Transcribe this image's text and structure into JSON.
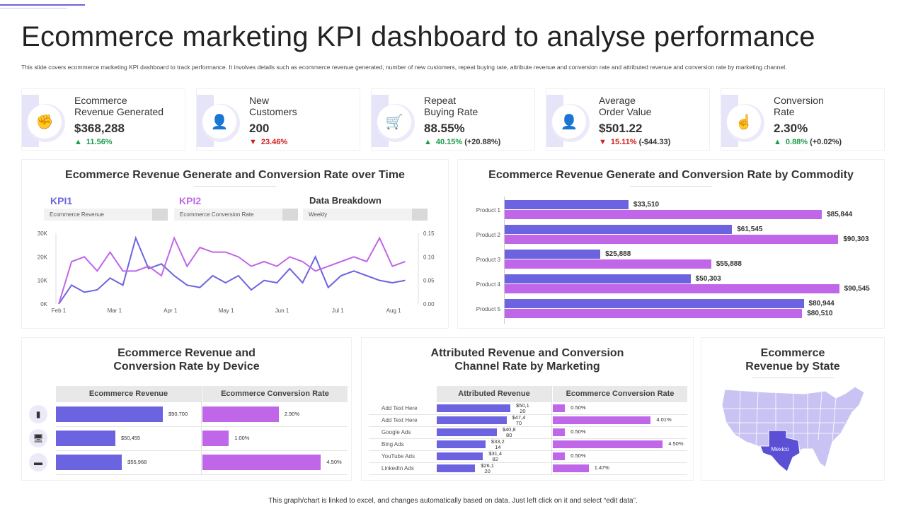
{
  "title": "Ecommerce marketing KPI dashboard to analyse performance",
  "subtitle": "This slide covers ecommerce marketing KPI dashboard to track performance. It involves details such as ecommerce revenue generated, number of new customers, repeat buying rate, attribute revenue and conversion rate and attributed revenue and conversion rate by marketing channel.",
  "colors": {
    "accent": "#6c63e0",
    "secondary": "#c066e8",
    "up": "#1a9c4a",
    "down": "#d41a1a",
    "band": "#e6e4f8"
  },
  "kpis": [
    {
      "title": "Ecommerce\nRevenue  Generated",
      "value": "$368,288",
      "direction": "up",
      "change": "11.56%",
      "extra": "",
      "icon": "hand-raised-arrows-icon"
    },
    {
      "title": "New\nCustomers",
      "value": "200",
      "direction": "down",
      "change": "23.46%",
      "extra": "",
      "icon": "hand-holding-user-icon"
    },
    {
      "title": "Repeat\nBuying Rate",
      "value": "88.55%",
      "direction": "up",
      "change": "40.15%",
      "extra": "(+20.88%)",
      "icon": "shopping-cart-person-icon"
    },
    {
      "title": "Average\nOrder Value",
      "value": "$501.22",
      "direction": "down",
      "change": "15.11%",
      "extra": "(-$44.33)",
      "icon": "hand-holding-user-icon"
    },
    {
      "title": "Conversion\nRate",
      "value": "2.30%",
      "direction": "up",
      "change": "0.88%",
      "extra": "(+0.02%)",
      "icon": "touch-screen-icon"
    }
  ],
  "time_panel": {
    "title": "Ecommerce Revenue Generate and Conversion Rate over Time",
    "kpi1_label": "KPI1",
    "kpi1_value": "Ecommerce Revenue",
    "kpi2_label": "KPI2",
    "kpi2_value": "Ecommerce Conversion Rate",
    "breakdown_label": "Data Breakdown",
    "breakdown_value": "Weekly"
  },
  "commodity_panel": {
    "title": "Ecommerce Revenue Generate and Conversion Rate by Commodity"
  },
  "device_panel": {
    "title_line1": "Ecommerce Revenue and",
    "title_line2": "Conversion Rate by Device",
    "col1": "Ecommerce Revenue",
    "col2": "Ecommerce Conversion Rate"
  },
  "marketing_panel": {
    "title_line1": "Attributed Revenue and Conversion",
    "title_line2": "Channel Rate by Marketing",
    "col1": "Attributed Revenue",
    "col2": "Ecommerce Conversion Rate"
  },
  "state_panel": {
    "title_line1": "Ecommerce",
    "title_line2": "Revenue by State",
    "highlight": "Mexico"
  },
  "footer": "This graph/chart is linked to excel, and changes automatically based on data. Just left click on it and select “edit data”.",
  "chart_data": [
    {
      "type": "line",
      "x_ticks": [
        "Feb 1",
        "Mar 1",
        "Apr 1",
        "May 1",
        "Jun 1",
        "Jul 1",
        "Aug 1"
      ],
      "y_left_ticks": [
        "0K",
        "10K",
        "20K",
        "30K"
      ],
      "y_left_lim": [
        0,
        30000
      ],
      "y_right_ticks": [
        "0.00",
        "0.05",
        "0.10",
        "0.15"
      ],
      "y_right_lim": [
        0,
        0.15
      ],
      "series": [
        {
          "name": "KPI1",
          "axis": "left",
          "color": "#6c63e0",
          "values": [
            0,
            8000,
            5000,
            6000,
            11000,
            8000,
            28000,
            15000,
            17000,
            12000,
            8000,
            7000,
            12000,
            9000,
            12000,
            6000,
            10000,
            9000,
            15000,
            9000,
            20000,
            7000,
            12000,
            14000,
            12000,
            10000,
            9000,
            10000
          ]
        },
        {
          "name": "KPI2",
          "axis": "right",
          "color": "#c066e8",
          "values": [
            0,
            0.09,
            0.1,
            0.07,
            0.11,
            0.07,
            0.07,
            0.08,
            0.06,
            0.14,
            0.08,
            0.12,
            0.11,
            0.11,
            0.1,
            0.08,
            0.09,
            0.08,
            0.1,
            0.09,
            0.07,
            0.08,
            0.09,
            0.1,
            0.09,
            0.14,
            0.08,
            0.09
          ]
        }
      ],
      "grid": false
    },
    {
      "type": "bar",
      "orientation": "horizontal",
      "categories": [
        "Product 1",
        "Product 2",
        "Product 3",
        "Product 4",
        "Product 5"
      ],
      "series": [
        {
          "color": "#6c63e0",
          "values": [
            33510,
            61545,
            25888,
            50303,
            80944
          ],
          "labels": [
            "$33,510",
            "$61,545",
            "$25,888",
            "$50,303",
            "$80,944"
          ]
        },
        {
          "color": "#c066e8",
          "values": [
            85844,
            90303,
            55888,
            90545,
            80510
          ],
          "labels": [
            "$85,844",
            "$90,303",
            "$55,888",
            "$90,545",
            "$80,510"
          ]
        }
      ]
    },
    {
      "type": "bar",
      "orientation": "horizontal",
      "categories": [
        "tablet",
        "desktop",
        "router"
      ],
      "icons": [
        "tablet-icon",
        "desktop-monitor-icon",
        "router-icon"
      ],
      "series": [
        {
          "name": "Ecommerce Revenue",
          "color": "#6c63e0",
          "values": [
            90700,
            50455,
            55968
          ],
          "labels": [
            "$90,700",
            "$50,455",
            "$55,968"
          ]
        },
        {
          "name": "Ecommerce Conversion Rate",
          "color": "#c066e8",
          "values": [
            2.9,
            1.0,
            4.5
          ],
          "labels": [
            "2.90%",
            "1.00%",
            "4.50%"
          ]
        }
      ]
    },
    {
      "type": "bar",
      "orientation": "horizontal",
      "categories": [
        "Add Text Here",
        "Add Text Here",
        "Google Ads",
        "Bing Ads",
        "YouTube  Ads",
        "LinkedIn  Ads"
      ],
      "series": [
        {
          "name": "Attributed Revenue",
          "color": "#6c63e0",
          "values": [
            50120,
            47470,
            40880,
            33214,
            31482,
            26120
          ],
          "labels": [
            "$50,1\n20",
            "$47,4\n70",
            "$40,8\n80",
            "$33,2\n14",
            "$31,4\n82",
            "$26,1\n20"
          ]
        },
        {
          "name": "Ecommerce Conversion Rate",
          "color": "#c066e8",
          "values": [
            0.5,
            4.01,
            0.5,
            4.5,
            0.5,
            1.47
          ],
          "labels": [
            "0.50%",
            "4.01%",
            "0.50%",
            "4.50%",
            "0.50%",
            "1.47%"
          ]
        }
      ]
    }
  ]
}
